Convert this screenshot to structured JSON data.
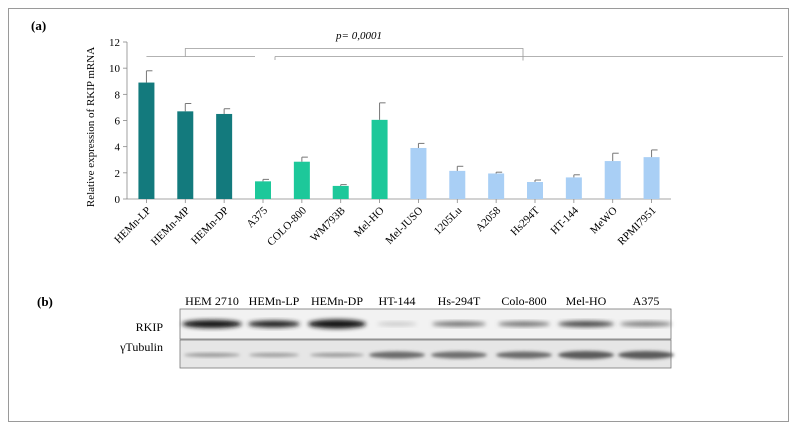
{
  "panel_a": {
    "label": "(a)",
    "chart_data": {
      "type": "bar",
      "ylabel": "Relative expression of RKIP mRNA",
      "ylim": [
        0,
        12
      ],
      "yticks": [
        0,
        2,
        4,
        6,
        8,
        10,
        12
      ],
      "annotation": "p= 0,0001",
      "grid": false,
      "categories": [
        "HEMn-LP",
        "HEMn-MP",
        "HEMn-DP",
        "A375",
        "COLO-800",
        "WM793B",
        "Mel-HO",
        "Mel-JUSO",
        "1205Lu",
        "A2058",
        "Hs294T",
        "HT-144",
        "MeWO",
        "RPMI7951"
      ],
      "values": [
        8.9,
        6.7,
        6.5,
        1.35,
        2.85,
        1.0,
        6.05,
        3.9,
        2.15,
        1.95,
        1.3,
        1.65,
        2.9,
        3.2
      ],
      "errors": [
        0.9,
        0.6,
        0.4,
        0.15,
        0.35,
        0.1,
        1.3,
        0.35,
        0.35,
        0.1,
        0.15,
        0.2,
        0.6,
        0.55
      ],
      "colors": [
        "#137a7d",
        "#137a7d",
        "#137a7d",
        "#1dc89a",
        "#1dc89a",
        "#1dc89a",
        "#1dc89a",
        "#a9cff5",
        "#a9cff5",
        "#a9cff5",
        "#a9cff5",
        "#a9cff5",
        "#a9cff5",
        "#a9cff5"
      ]
    }
  },
  "panel_b": {
    "label": "(b)",
    "lanes": [
      "HEM 2710",
      "HEMn-LP",
      "HEMn-DP",
      "HT-144",
      "Hs-294T",
      "Colo-800",
      "Mel-HO",
      "A375"
    ],
    "rows": [
      "RKIP",
      "γTubulin"
    ]
  }
}
